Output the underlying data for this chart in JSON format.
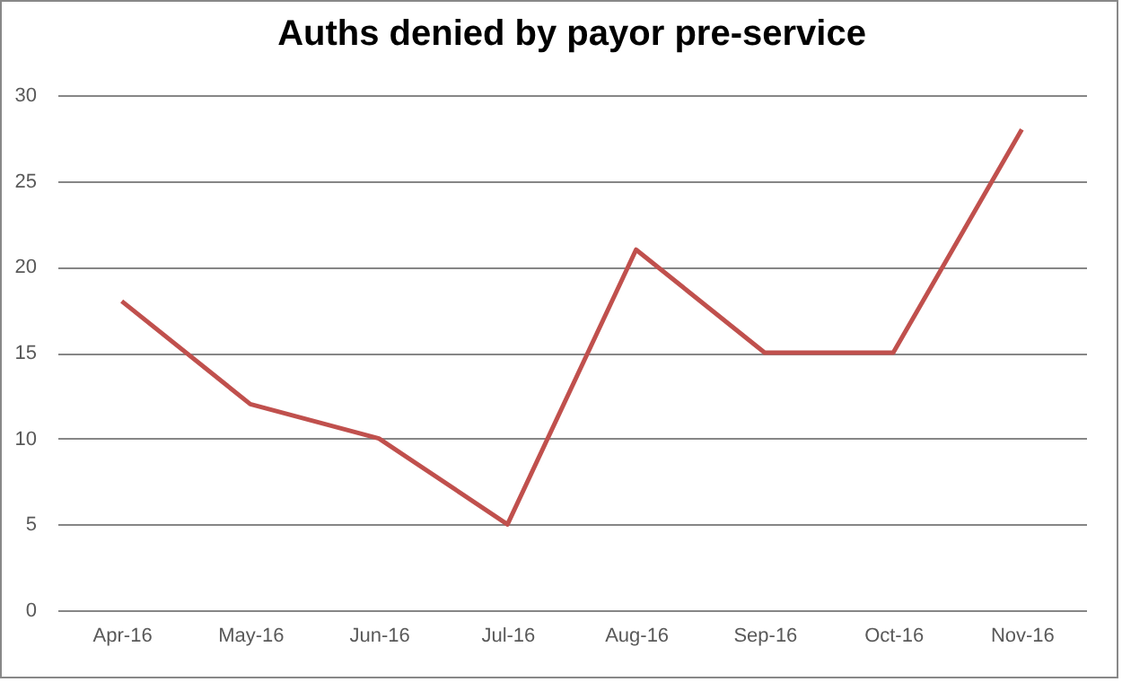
{
  "chart_data": {
    "type": "line",
    "title": "Auths denied by payor pre-service",
    "categories": [
      "Apr-16",
      "May-16",
      "Jun-16",
      "Jul-16",
      "Aug-16",
      "Sep-16",
      "Oct-16",
      "Nov-16"
    ],
    "series": [
      {
        "color": "#c0504d",
        "values": [
          18,
          12,
          10,
          5,
          21,
          15,
          15,
          28
        ]
      }
    ],
    "ylim": [
      0,
      30
    ],
    "yticks": [
      0,
      5,
      10,
      15,
      20,
      25,
      30
    ],
    "grid": "y",
    "marker": "none",
    "line_style": "solid"
  }
}
